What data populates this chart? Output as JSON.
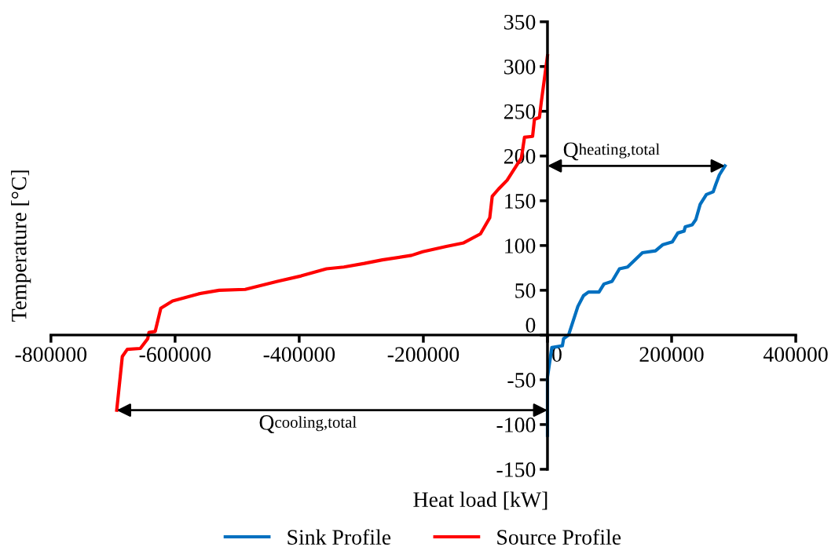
{
  "chart_data": {
    "type": "line",
    "xlabel": "Heat load [kW]",
    "ylabel": "Temperature [°C]",
    "series": [
      {
        "name": "Sink Profile",
        "color": "#0070c0",
        "x": [
          0,
          0,
          7000,
          24000,
          26000,
          34000,
          49000,
          58000,
          66000,
          83000,
          91000,
          104000,
          116000,
          129000,
          153000,
          174000,
          186000,
          201000,
          210000,
          220000,
          222000,
          233000,
          239000,
          246000,
          256000,
          267000,
          271000,
          277000,
          286000
        ],
        "values": [
          -112,
          -47,
          -14,
          -12,
          -4,
          0,
          32,
          44,
          48,
          48,
          57,
          60,
          74,
          76,
          92,
          94,
          101,
          104,
          114,
          116,
          121,
          123,
          129,
          146,
          157,
          160,
          168,
          179,
          189
        ]
      },
      {
        "name": "Source Profile",
        "color": "#ff0000",
        "x": [
          -694000,
          -691000,
          -685000,
          -677000,
          -656000,
          -644000,
          -642000,
          -632000,
          -623000,
          -604000,
          -562000,
          -529000,
          -487000,
          -435000,
          -397000,
          -356000,
          -328000,
          -295000,
          -266000,
          -219000,
          -201000,
          -163000,
          -135000,
          -108000,
          -93000,
          -89000,
          -79000,
          -65000,
          -42000,
          -37000,
          -24000,
          -21000,
          -13000,
          -10000,
          0
        ],
        "values": [
          -84,
          -64,
          -24,
          -16,
          -15,
          -4,
          3,
          4,
          30,
          38,
          46,
          50,
          51,
          60,
          66,
          74,
          76,
          80,
          84,
          89,
          93,
          99,
          103,
          113,
          131,
          155,
          163,
          173,
          198,
          221,
          222,
          241,
          243,
          260,
          312
        ]
      }
    ],
    "annotations": [
      "Q$_{heating,total}$",
      "Q$_{cooling,total}$"
    ],
    "xlim": [
      -800000,
      400000
    ],
    "xticks": [
      -800000,
      -600000,
      -400000,
      -200000,
      0,
      200000,
      400000
    ],
    "ylim": [
      -150,
      350
    ],
    "yticks": [
      -150,
      -100,
      -50,
      0,
      50,
      100,
      150,
      200,
      250,
      300,
      350
    ],
    "grid": false,
    "legend": "bottom",
    "marker": "none",
    "line_style": "solid"
  }
}
